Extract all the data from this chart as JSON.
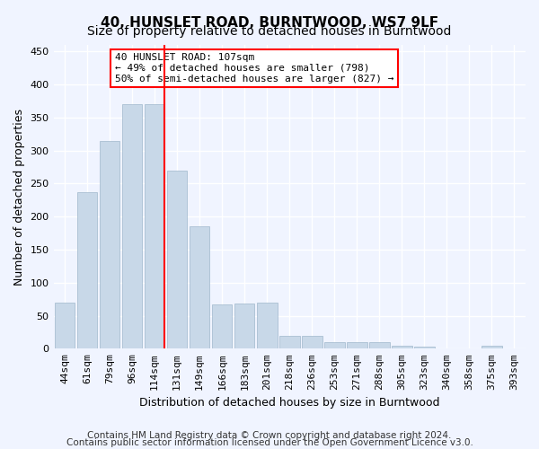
{
  "title": "40, HUNSLET ROAD, BURNTWOOD, WS7 9LF",
  "subtitle": "Size of property relative to detached houses in Burntwood",
  "xlabel": "Distribution of detached houses by size in Burntwood",
  "ylabel": "Number of detached properties",
  "bar_color": "#c8d8e8",
  "bar_edge_color": "#a0b8cc",
  "categories": [
    "44sqm",
    "61sqm",
    "79sqm",
    "96sqm",
    "114sqm",
    "131sqm",
    "149sqm",
    "166sqm",
    "183sqm",
    "201sqm",
    "218sqm",
    "236sqm",
    "253sqm",
    "271sqm",
    "288sqm",
    "305sqm",
    "323sqm",
    "340sqm",
    "358sqm",
    "375sqm",
    "393sqm"
  ],
  "values": [
    70,
    237,
    315,
    370,
    370,
    270,
    185,
    67,
    68,
    70,
    20,
    19,
    10,
    10,
    10,
    4,
    3,
    0,
    0,
    4,
    0
  ],
  "ylim": [
    0,
    460
  ],
  "yticks": [
    0,
    50,
    100,
    150,
    200,
    250,
    300,
    350,
    400,
    450
  ],
  "red_line_x": 4,
  "annotation_text": "40 HUNSLET ROAD: 107sqm\n← 49% of detached houses are smaller (798)\n50% of semi-detached houses are larger (827) →",
  "annotation_box_color": "white",
  "annotation_box_edge": "red",
  "footer1": "Contains HM Land Registry data © Crown copyright and database right 2024.",
  "footer2": "Contains public sector information licensed under the Open Government Licence v3.0.",
  "background_color": "#f0f4ff",
  "grid_color": "#ffffff",
  "title_fontsize": 11,
  "subtitle_fontsize": 10,
  "axis_label_fontsize": 9,
  "tick_fontsize": 8,
  "footer_fontsize": 7.5
}
